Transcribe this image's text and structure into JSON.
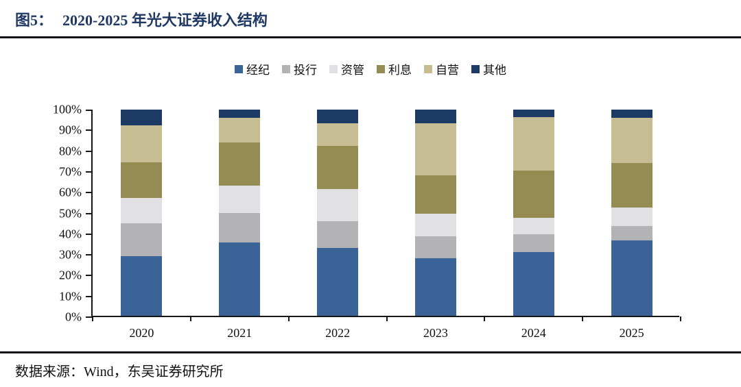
{
  "figure": {
    "label": "图5：",
    "title": "2020-2025 年光大证券收入结构"
  },
  "footer": {
    "source": "数据来源：Wind，东吴证券研究所"
  },
  "colors": {
    "title_navy": "#1F3864",
    "axis": "#161616",
    "rule": "#0c0f16"
  },
  "chart_data": {
    "type": "bar",
    "stacked": true,
    "stacked_unit": "percent",
    "title": "2020-2025 年光大证券收入结构",
    "categories": [
      "2020",
      "2021",
      "2022",
      "2023",
      "2024",
      "2025"
    ],
    "series": [
      {
        "name": "经纪",
        "color": "#3A6397",
        "values": [
          29,
          35.5,
          33,
          28,
          31,
          36.5
        ]
      },
      {
        "name": "投行",
        "color": "#B3B3B5",
        "values": [
          16,
          14.5,
          13,
          10.5,
          8.5,
          7
        ]
      },
      {
        "name": "资管",
        "color": "#E1E1E3",
        "values": [
          12,
          13,
          15.5,
          11,
          8,
          9
        ]
      },
      {
        "name": "利息",
        "color": "#948C52",
        "values": [
          17.5,
          21,
          21,
          18.5,
          23,
          21.5
        ]
      },
      {
        "name": "自营",
        "color": "#C6BD93",
        "values": [
          18,
          12,
          11,
          25.5,
          26,
          22
        ]
      },
      {
        "name": "其他",
        "color": "#1C3A63",
        "values": [
          7.5,
          4,
          6.5,
          6.5,
          3.5,
          4
        ]
      }
    ],
    "xlabel": "",
    "ylabel": "",
    "ylim": [
      0,
      100
    ],
    "y_tick_step": 10,
    "y_tick_suffix": "%",
    "grid": false,
    "legend_position": "top-center"
  }
}
